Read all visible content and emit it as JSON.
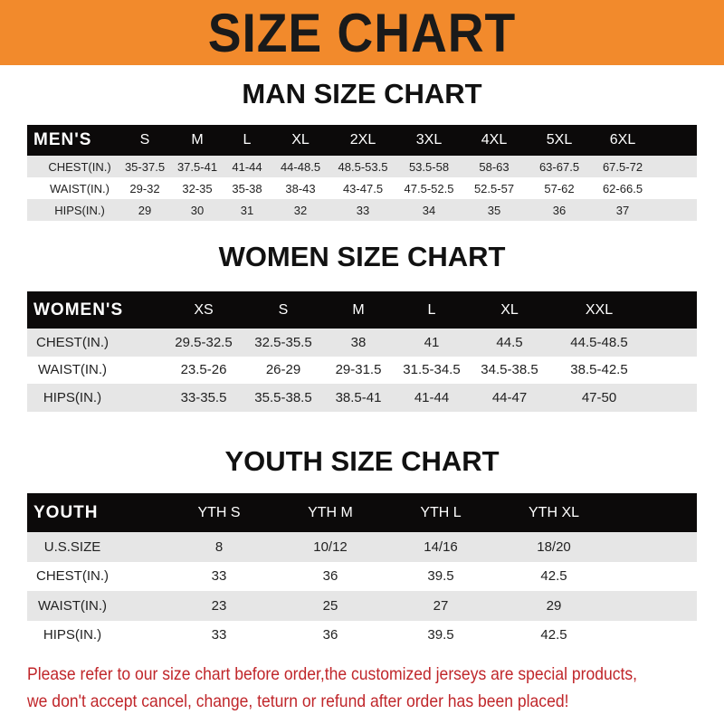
{
  "banner_title": "SIZE CHART",
  "men": {
    "title": "MAN SIZE CHART",
    "header": "MEN'S",
    "sizes": [
      "S",
      "M",
      "L",
      "XL",
      "2XL",
      "3XL",
      "4XL",
      "5XL",
      "6XL"
    ],
    "rows": [
      {
        "label": "CHEST(IN.)",
        "values": [
          "35-37.5",
          "37.5-41",
          "41-44",
          "44-48.5",
          "48.5-53.5",
          "53.5-58",
          "58-63",
          "63-67.5",
          "67.5-72"
        ]
      },
      {
        "label": "WAIST(IN.)",
        "values": [
          "29-32",
          "32-35",
          "35-38",
          "38-43",
          "43-47.5",
          "47.5-52.5",
          "52.5-57",
          "57-62",
          "62-66.5"
        ]
      },
      {
        "label": "HIPS(IN.)",
        "values": [
          "29",
          "30",
          "31",
          "32",
          "33",
          "34",
          "35",
          "36",
          "37"
        ]
      }
    ]
  },
  "women": {
    "title": "WOMEN SIZE CHART",
    "header": "WOMEN'S",
    "sizes": [
      "XS",
      "S",
      "M",
      "L",
      "XL",
      "XXL"
    ],
    "rows": [
      {
        "label": "CHEST(IN.)",
        "values": [
          "29.5-32.5",
          "32.5-35.5",
          "38",
          "41",
          "44.5",
          "44.5-48.5"
        ]
      },
      {
        "label": "WAIST(IN.)",
        "values": [
          "23.5-26",
          "26-29",
          "29-31.5",
          "31.5-34.5",
          "34.5-38.5",
          "38.5-42.5"
        ]
      },
      {
        "label": "HIPS(IN.)",
        "values": [
          "33-35.5",
          "35.5-38.5",
          "38.5-41",
          "41-44",
          "44-47",
          "47-50"
        ]
      }
    ]
  },
  "youth": {
    "title": "YOUTH SIZE CHART",
    "header": "YOUTH",
    "sizes": [
      "YTH S",
      "YTH M",
      "YTH L",
      "YTH XL"
    ],
    "rows": [
      {
        "label": "U.S.SIZE",
        "values": [
          "8",
          "10/12",
          "14/16",
          "18/20"
        ]
      },
      {
        "label": "CHEST(IN.)",
        "values": [
          "33",
          "36",
          "39.5",
          "42.5"
        ]
      },
      {
        "label": "WAIST(IN.)",
        "values": [
          "23",
          "25",
          "27",
          "29"
        ]
      },
      {
        "label": "HIPS(IN.)",
        "values": [
          "33",
          "36",
          "39.5",
          "42.5"
        ]
      }
    ]
  },
  "footer": {
    "line1": "Please refer to our size chart before order,the customized jerseys are special products,",
    "line2": "we don't accept cancel, change, teturn or refund after order has been placed!"
  }
}
